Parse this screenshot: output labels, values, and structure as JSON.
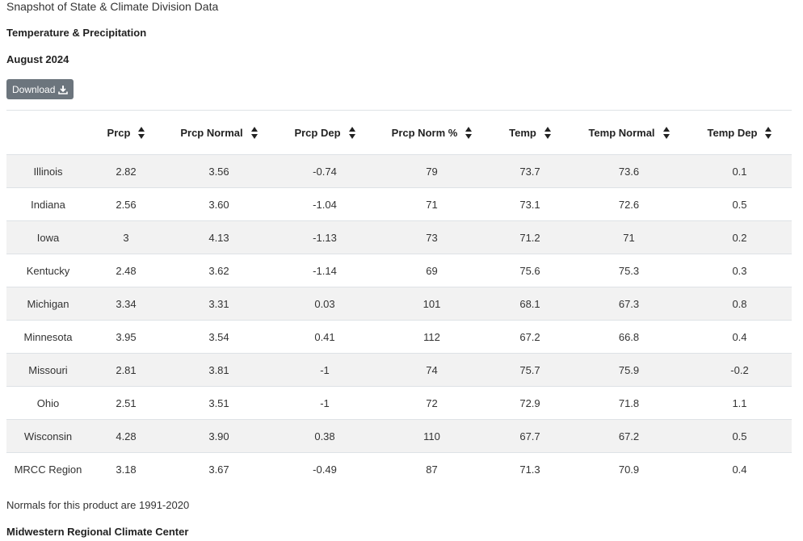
{
  "header": {
    "title": "Snapshot of State & Climate Division Data",
    "subtitle": "Temperature & Precipitation",
    "period": "August 2024"
  },
  "download": {
    "label": "Download",
    "icon": "download-icon"
  },
  "table": {
    "columns": [
      "",
      "Prcp",
      "Prcp Normal",
      "Prcp Dep",
      "Prcp Norm %",
      "Temp",
      "Temp Normal",
      "Temp Dep"
    ],
    "rows": [
      [
        "Illinois",
        "2.82",
        "3.56",
        "-0.74",
        "79",
        "73.7",
        "73.6",
        "0.1"
      ],
      [
        "Indiana",
        "2.56",
        "3.60",
        "-1.04",
        "71",
        "73.1",
        "72.6",
        "0.5"
      ],
      [
        "Iowa",
        "3",
        "4.13",
        "-1.13",
        "73",
        "71.2",
        "71",
        "0.2"
      ],
      [
        "Kentucky",
        "2.48",
        "3.62",
        "-1.14",
        "69",
        "75.6",
        "75.3",
        "0.3"
      ],
      [
        "Michigan",
        "3.34",
        "3.31",
        "0.03",
        "101",
        "68.1",
        "67.3",
        "0.8"
      ],
      [
        "Minnesota",
        "3.95",
        "3.54",
        "0.41",
        "112",
        "67.2",
        "66.8",
        "0.4"
      ],
      [
        "Missouri",
        "2.81",
        "3.81",
        "-1",
        "74",
        "75.7",
        "75.9",
        "-0.2"
      ],
      [
        "Ohio",
        "2.51",
        "3.51",
        "-1",
        "72",
        "72.9",
        "71.8",
        "1.1"
      ],
      [
        "Wisconsin",
        "4.28",
        "3.90",
        "0.38",
        "110",
        "67.7",
        "67.2",
        "0.5"
      ],
      [
        "MRCC Region",
        "3.18",
        "3.67",
        "-0.49",
        "87",
        "71.3",
        "70.9",
        "0.4"
      ]
    ]
  },
  "footnote": "Normals for this product are 1991-2020",
  "footer": "Midwestern Regional Climate Center",
  "colors": {
    "button_bg": "#6c757d",
    "stripe": "#f2f2f2",
    "border": "#dee2e6"
  }
}
